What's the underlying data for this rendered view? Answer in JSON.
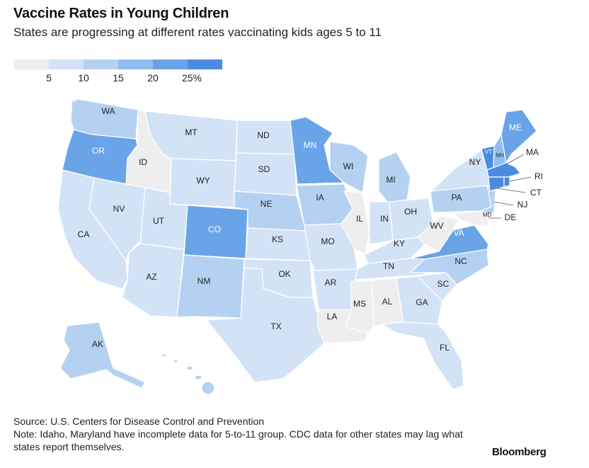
{
  "header": {
    "title": "Vaccine Rates in Young Children",
    "subtitle": "States are progressing at different rates vaccinating kids ages 5 to 11"
  },
  "legend": {
    "colors": [
      "#eeeeee",
      "#d3e3f6",
      "#b5d1f2",
      "#8fbdf0",
      "#6aa4e8",
      "#4b8ae0"
    ],
    "ticks": [
      "5",
      "10",
      "15",
      "20",
      "25%"
    ]
  },
  "colors": {
    "bin0": "#eeeeee",
    "bin1": "#d3e3f6",
    "bin2": "#b5d1f2",
    "bin3": "#8fbdf0",
    "bin4": "#6aa4e8",
    "bin5": "#4b8ae0"
  },
  "states": {
    "WA": "WA",
    "OR": "OR",
    "ID": "ID",
    "MT": "MT",
    "WY": "WY",
    "ND": "ND",
    "SD": "SD",
    "NE": "NE",
    "KS": "KS",
    "OK": "OK",
    "TX": "TX",
    "NM": "NM",
    "CO": "CO",
    "UT": "UT",
    "AZ": "AZ",
    "NV": "NV",
    "CA": "CA",
    "MN": "MN",
    "IA": "IA",
    "MO": "MO",
    "AR": "AR",
    "LA": "LA",
    "WI": "WI",
    "IL": "IL",
    "MI": "MI",
    "IN": "IN",
    "OH": "OH",
    "KY": "KY",
    "TN": "TN",
    "MS": "MS",
    "AL": "AL",
    "GA": "GA",
    "FL": "FL",
    "SC": "SC",
    "NC": "NC",
    "VA": "VA",
    "WV": "WV",
    "PA": "PA",
    "NY": "NY",
    "VT": "VT",
    "NH": "NH",
    "ME": "ME",
    "MA": "MA",
    "RI": "RI",
    "CT": "CT",
    "NJ": "NJ",
    "DE": "DE",
    "MD": "MD",
    "AK": "AK"
  },
  "footer": {
    "source": "Source: U.S. Centers for Disease Control and Prevention",
    "note": "Note: Idaho, Maryland have incomplete data for 5-to-11 group. CDC data for other states may lag what states report themselves."
  },
  "brand": "Bloomberg"
}
